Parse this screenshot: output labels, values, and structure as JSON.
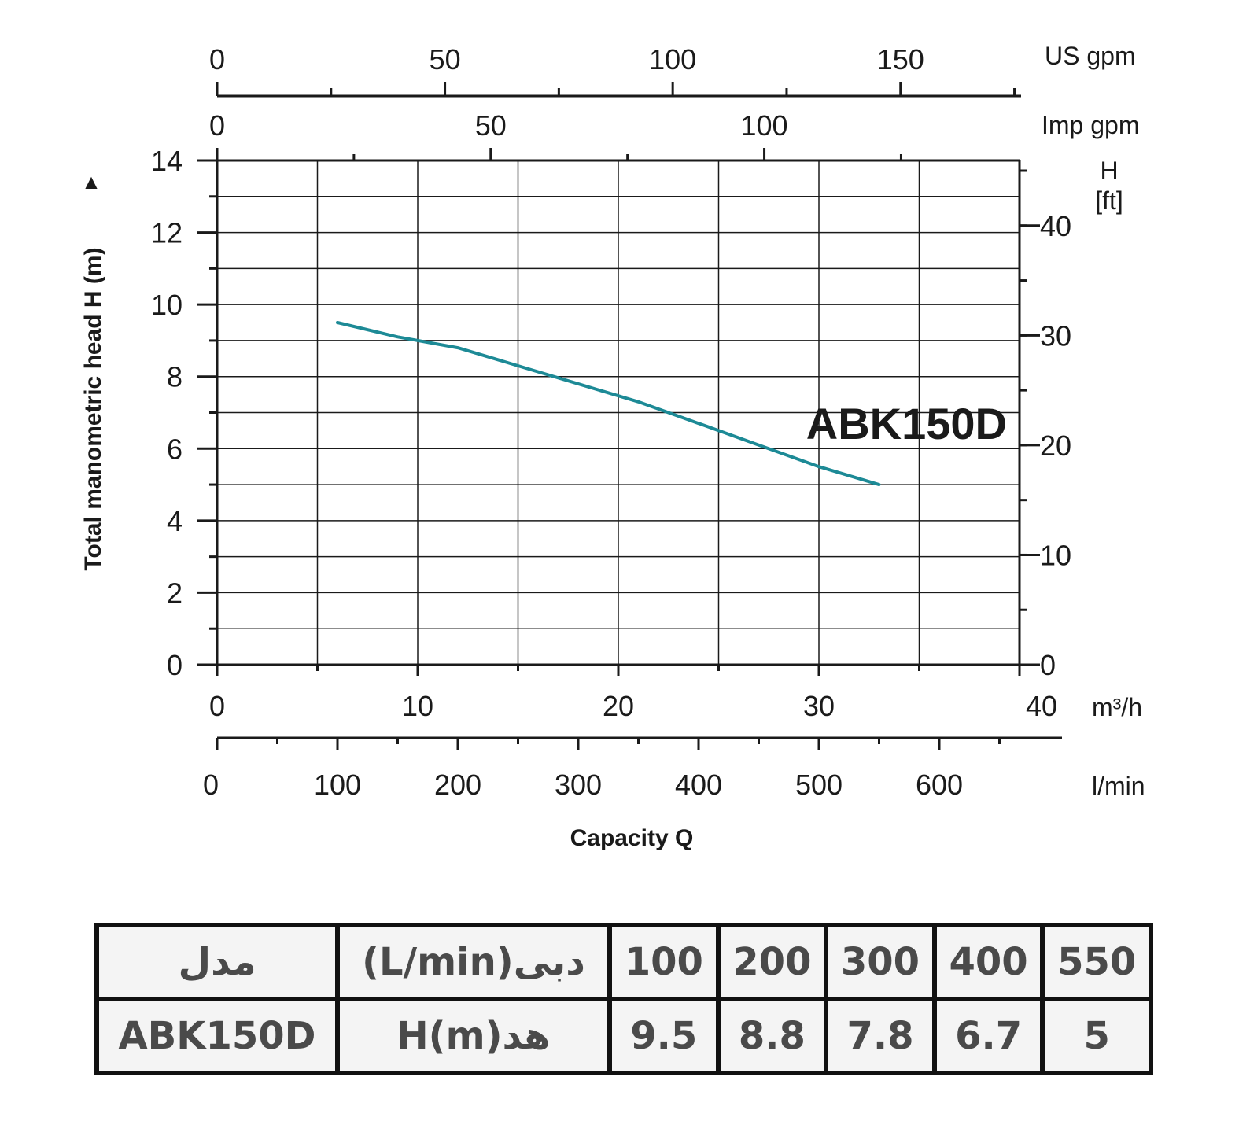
{
  "chart_data": {
    "type": "line",
    "title": "",
    "model_label": "ABK150D",
    "xlabel": "Capacity Q",
    "ylabel": "Total manometric head H (m)",
    "ylabel_marker": "▲",
    "x_unit_primary": "m³/h",
    "xlim_m3h": [
      0,
      40
    ],
    "x_ticks_m3h": [
      0,
      10,
      20,
      30,
      40
    ],
    "x_unit_lmin": "l/min",
    "x_ticks_lmin": [
      0,
      100,
      200,
      300,
      400,
      500,
      600
    ],
    "x_unit_usgpm": "US gpm",
    "x_ticks_usgpm": [
      0,
      50,
      100,
      150
    ],
    "x_unit_impgpm": "Imp gpm",
    "x_ticks_impgpm": [
      0,
      50,
      100
    ],
    "ylim_m": [
      0,
      14
    ],
    "y_ticks_m": [
      0,
      2,
      4,
      6,
      8,
      10,
      12,
      14
    ],
    "y2_unit": "H\n[ft]",
    "y2_ticks_ft": [
      0,
      10,
      20,
      30,
      40
    ],
    "grid": true,
    "legend": "none",
    "series": [
      {
        "color": "#1d8a96",
        "x_lmin": [
          100,
          150,
          200,
          250,
          300,
          350,
          400,
          450,
          500,
          550
        ],
        "y_m": [
          9.5,
          9.1,
          8.8,
          8.3,
          7.8,
          7.3,
          6.7,
          6.1,
          5.5,
          5.0
        ]
      }
    ]
  },
  "table": {
    "rows": [
      {
        "label": "مدل",
        "param": "دبی(L/min)",
        "values": [
          "100",
          "200",
          "300",
          "400",
          "550"
        ]
      },
      {
        "label": "ABK150D",
        "param": "هد(H(m",
        "values": [
          "9.5",
          "8.8",
          "7.8",
          "6.7",
          "5"
        ]
      }
    ]
  }
}
